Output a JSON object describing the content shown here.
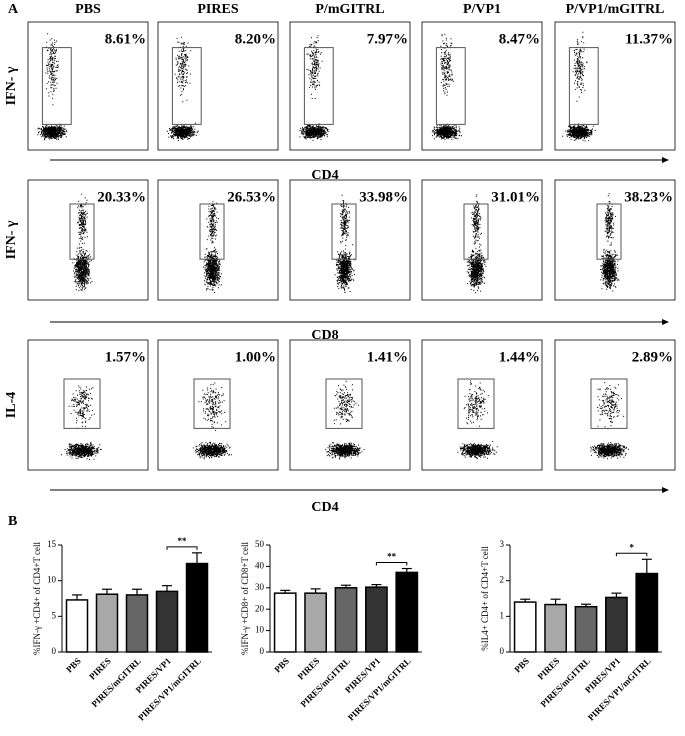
{
  "panel_a": {
    "label": "A",
    "columns": [
      "PBS",
      "PIRES",
      "P/mGITRL",
      "P/VP1",
      "P/VP1/mGITRL"
    ],
    "rows": [
      {
        "y_label": "IFN- γ",
        "x_label": "CD4",
        "percentages": [
          "8.61%",
          "8.20%",
          "7.97%",
          "8.47%",
          "11.37%"
        ]
      },
      {
        "y_label": "IFN- γ",
        "x_label": "CD8",
        "percentages": [
          "20.33%",
          "26.53%",
          "33.98%",
          "31.01%",
          "38.23%"
        ]
      },
      {
        "y_label": "IL-4",
        "x_label": "CD4",
        "percentages": [
          "1.57%",
          "1.00%",
          "1.41%",
          "1.44%",
          "2.89%"
        ]
      }
    ]
  },
  "panel_b": {
    "label": "B"
  },
  "chart_data": [
    {
      "type": "bar",
      "y_label": "%IFN-γ +CD4+ of CD4+T cell",
      "categories": [
        "PBS",
        "PIRES",
        "PIRES/mGITRL",
        "PIRES/VP1",
        "PIRES/VP1/mGITRL"
      ],
      "values": [
        7.3,
        8.1,
        8.0,
        8.5,
        12.4
      ],
      "errors": [
        0.7,
        0.7,
        0.8,
        0.8,
        1.5
      ],
      "colors": [
        "#ffffff",
        "#a8a8a8",
        "#666666",
        "#333333",
        "#000000"
      ],
      "ylim": [
        0,
        15
      ],
      "yticks": [
        0,
        5,
        10,
        15
      ],
      "significance": "**"
    },
    {
      "type": "bar",
      "y_label": "%IFN-γ +CD8+ of CD8+T cell",
      "categories": [
        "PBS",
        "PIRES",
        "PIRES/mGITRL",
        "PIRES/VP1",
        "PIRES/VP1/mGITRL"
      ],
      "values": [
        27.5,
        27.5,
        30,
        30.3,
        37.2
      ],
      "errors": [
        1.3,
        2,
        1.2,
        1.2,
        1.8
      ],
      "colors": [
        "#ffffff",
        "#a8a8a8",
        "#666666",
        "#333333",
        "#000000"
      ],
      "ylim": [
        0,
        50
      ],
      "yticks": [
        0,
        10,
        20,
        30,
        40,
        50
      ],
      "significance": "**"
    },
    {
      "type": "bar",
      "y_label": "%IL4+ CD4+ of CD4+T cell",
      "categories": [
        "PBS",
        "PIRES",
        "PIRES/mGITRL",
        "PIRES/VP1",
        "PIRES/VP1/mGITRL"
      ],
      "values": [
        1.4,
        1.33,
        1.27,
        1.53,
        2.2
      ],
      "errors": [
        0.08,
        0.15,
        0.07,
        0.12,
        0.4
      ],
      "colors": [
        "#ffffff",
        "#a8a8a8",
        "#666666",
        "#333333",
        "#000000"
      ],
      "ylim": [
        0,
        3
      ],
      "yticks": [
        0,
        1,
        2,
        3
      ],
      "significance": "*"
    }
  ]
}
